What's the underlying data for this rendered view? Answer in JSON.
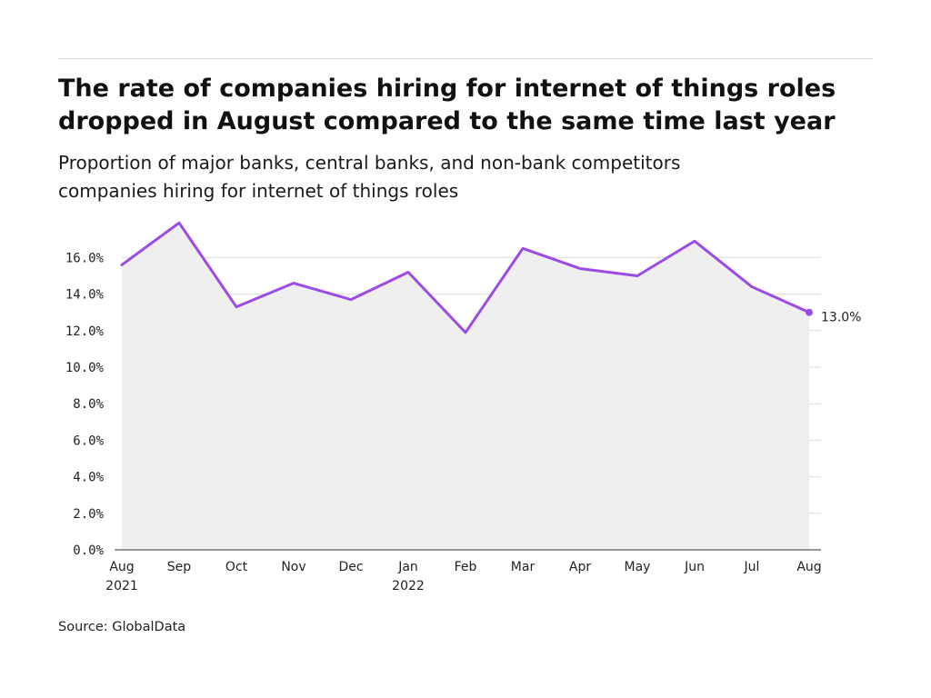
{
  "header": {
    "title_lines": [
      "The rate of companies hiring for internet of things roles",
      "dropped in August compared to the same time last year"
    ],
    "subtitle_lines": [
      "Proportion of major banks, central banks, and non-bank competitors",
      "companies hiring for internet of things roles"
    ]
  },
  "footer": {
    "source": "Source: GlobalData"
  },
  "colors": {
    "line": "#9b4be6",
    "area": "#efefef",
    "grid": "#dddddd",
    "axis": "#333333"
  },
  "chart_data": {
    "type": "area",
    "x": [
      "2021-08",
      "2021-09",
      "2021-10",
      "2021-11",
      "2021-12",
      "2022-01",
      "2022-02",
      "2022-03",
      "2022-04",
      "2022-05",
      "2022-06",
      "2022-07",
      "2022-08"
    ],
    "x_tick_labels": [
      [
        "Aug",
        "2021"
      ],
      [
        "Sep"
      ],
      [
        "Oct"
      ],
      [
        "Nov"
      ],
      [
        "Dec"
      ],
      [
        "Jan",
        "2022"
      ],
      [
        "Feb"
      ],
      [
        "Mar"
      ],
      [
        "Apr"
      ],
      [
        "May"
      ],
      [
        "Jun"
      ],
      [
        "Jul"
      ],
      [
        "Aug"
      ]
    ],
    "series": [
      {
        "values": [
          15.6,
          17.9,
          13.3,
          14.6,
          13.7,
          15.2,
          11.9,
          16.5,
          15.4,
          15.0,
          16.9,
          14.4,
          13.0
        ]
      }
    ],
    "y_tick_labels": [
      "0.0%",
      "2.0%",
      "4.0%",
      "6.0%",
      "8.0%",
      "10.0%",
      "12.0%",
      "14.0%",
      "16.0%"
    ],
    "y_ticks": [
      0,
      2,
      4,
      6,
      8,
      10,
      12,
      14,
      16
    ],
    "ylim": [
      0,
      18
    ],
    "end_label": "13.0%",
    "grid": true
  }
}
